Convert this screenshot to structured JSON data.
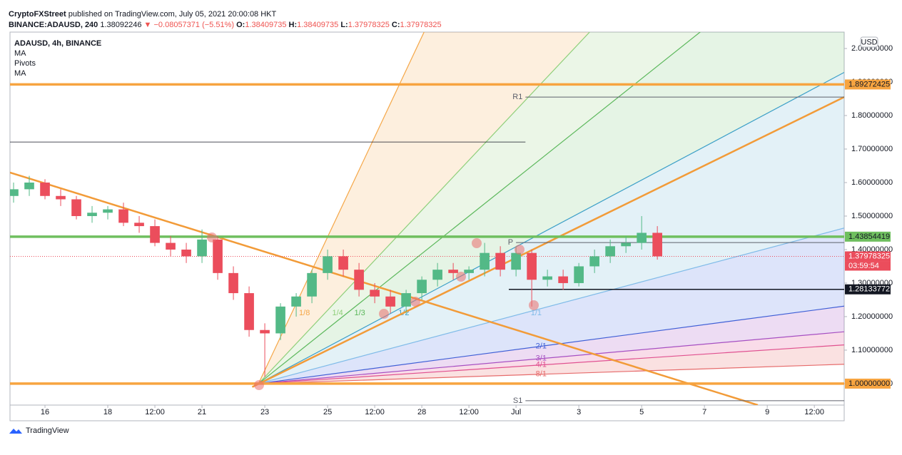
{
  "header": {
    "author": "CryptoFXStreet",
    "published": "published on TradingView.com, July 05, 2021 20:00:08 HKT",
    "symbol": "BINANCE:ADAUSD, 240",
    "price": "1.38092246",
    "change": "▼ −0.08057371 (−5.51%)",
    "ohlc": [
      {
        "k": "O:",
        "v": "1.38409735"
      },
      {
        "k": "H:",
        "v": "1.38409735"
      },
      {
        "k": "L:",
        "v": "1.37978325"
      },
      {
        "k": "C:",
        "v": "1.37978325"
      }
    ]
  },
  "footer": {
    "brand": "TradingView"
  },
  "chart_data": {
    "type": "candlestick",
    "legend_lines": [
      "ADAUSD, 4h, BINANCE",
      "MA",
      "Pivots",
      "MA"
    ],
    "currency": "USD",
    "x": [
      15,
      15.5,
      16,
      16.5,
      17,
      17.5,
      18,
      18.5,
      19,
      19.5,
      20,
      20.5,
      21,
      21.5,
      22,
      22.5,
      23,
      23.5,
      24,
      24.5,
      25,
      25.5,
      26,
      26.5,
      27,
      27.5,
      28,
      28.5,
      29,
      29.5,
      30,
      30.5,
      31,
      31.5,
      32,
      32.5,
      33,
      33.5,
      34,
      34.5,
      35,
      35.5
    ],
    "open": [
      1.56,
      1.58,
      1.6,
      1.56,
      1.55,
      1.5,
      1.51,
      1.52,
      1.48,
      1.47,
      1.42,
      1.4,
      1.38,
      1.43,
      1.33,
      1.27,
      1.16,
      1.15,
      1.23,
      1.26,
      1.33,
      1.38,
      1.34,
      1.28,
      1.26,
      1.23,
      1.27,
      1.31,
      1.34,
      1.33,
      1.34,
      1.39,
      1.34,
      1.39,
      1.31,
      1.32,
      1.3,
      1.35,
      1.38,
      1.41,
      1.42,
      1.45
    ],
    "high": [
      1.6,
      1.62,
      1.61,
      1.58,
      1.56,
      1.53,
      1.53,
      1.54,
      1.5,
      1.49,
      1.44,
      1.42,
      1.46,
      1.44,
      1.35,
      1.29,
      1.18,
      1.24,
      1.27,
      1.34,
      1.4,
      1.4,
      1.36,
      1.3,
      1.28,
      1.28,
      1.32,
      1.36,
      1.36,
      1.35,
      1.42,
      1.41,
      1.41,
      1.4,
      1.34,
      1.34,
      1.36,
      1.4,
      1.43,
      1.44,
      1.5,
      1.47
    ],
    "low": [
      1.54,
      1.56,
      1.55,
      1.53,
      1.49,
      1.48,
      1.49,
      1.47,
      1.45,
      1.41,
      1.38,
      1.36,
      1.36,
      1.31,
      1.25,
      1.14,
      1.02,
      1.13,
      1.2,
      1.24,
      1.31,
      1.32,
      1.26,
      1.24,
      1.21,
      1.21,
      1.25,
      1.29,
      1.31,
      1.31,
      1.32,
      1.32,
      1.32,
      1.23,
      1.29,
      1.28,
      1.29,
      1.33,
      1.36,
      1.39,
      1.4,
      1.37
    ],
    "close": [
      1.58,
      1.6,
      1.56,
      1.55,
      1.5,
      1.51,
      1.52,
      1.48,
      1.47,
      1.42,
      1.4,
      1.38,
      1.43,
      1.33,
      1.27,
      1.16,
      1.15,
      1.23,
      1.26,
      1.33,
      1.38,
      1.34,
      1.28,
      1.26,
      1.23,
      1.27,
      1.31,
      1.34,
      1.33,
      1.34,
      1.39,
      1.34,
      1.39,
      1.31,
      1.32,
      1.3,
      1.35,
      1.38,
      1.41,
      1.42,
      1.45,
      1.38
    ],
    "up_color": "#53b987",
    "down_color": "#eb4d5c",
    "xlim": [
      14.886,
      41.45
    ],
    "xticks": [
      16,
      18,
      {
        "value": 19.5,
        "label": "12:00"
      },
      21,
      23,
      25,
      {
        "value": 26.5,
        "label": "12:00"
      },
      28,
      {
        "value": 29.5,
        "label": "12:00"
      },
      {
        "value": 31,
        "label": "Jul"
      },
      {
        "value": 33,
        "label": "3"
      },
      {
        "value": 35,
        "label": "5"
      },
      {
        "value": 37,
        "label": "7"
      },
      {
        "value": 39,
        "label": "9"
      },
      {
        "value": 40.5,
        "label": "12:00"
      }
    ],
    "ylim": [
      0.936,
      2.049
    ],
    "yticks": [
      {
        "value": 1.0,
        "label": "1.00000000"
      },
      {
        "value": 1.1,
        "label": "1.10000000"
      },
      {
        "value": 1.2,
        "label": "1.20000000"
      },
      {
        "value": 1.3,
        "label": "1.30000000"
      },
      {
        "value": 1.4,
        "label": "1.40000000"
      },
      {
        "value": 1.5,
        "label": "1.50000000"
      },
      {
        "value": 1.6,
        "label": "1.60000000"
      },
      {
        "value": 1.7,
        "label": "1.70000000"
      },
      {
        "value": 1.8,
        "label": "1.80000000"
      },
      {
        "value": 1.9,
        "label": "1.90000000"
      },
      {
        "value": 2.0,
        "label": "2.00000000"
      }
    ],
    "levels": [
      {
        "value": 1.89272425,
        "color": "#f7a440",
        "text_color": "#131722"
      },
      {
        "value": 1.43854419,
        "color": "#6fbf5f",
        "text_color": "#131722"
      },
      {
        "value": 1,
        "label": "1.00000000",
        "color": "#f7a440",
        "text_color": "#131722"
      }
    ],
    "support": {
      "value": 1.28133772,
      "from": 30.77,
      "color": "#131722"
    },
    "last": {
      "value": 1.37978325,
      "countdown": "03:59:54",
      "color": "#eb4d5c"
    },
    "pivots": [
      {
        "label": "R1",
        "value": 1.855,
        "from": 31.3
      },
      {
        "label": "P",
        "value": 1.421,
        "from": 31.0
      },
      {
        "label": "S1",
        "value": 0.949,
        "from": 31.3
      }
    ],
    "hline": {
      "value": 1.721,
      "from": 14.886,
      "to": 31.3
    },
    "trendlines": [
      {
        "x": [
          14.886,
          38.7
        ],
        "y": [
          1.63,
          0.936
        ],
        "color": "#f29b38"
      },
      {
        "x": [
          22.6,
          41.45
        ],
        "y": [
          0.99,
          1.855
        ],
        "color": "#f29b38"
      }
    ],
    "gann": {
      "origin_x": 22.8,
      "origin_y": 1.0,
      "labels": [
        "1/8",
        "1/4",
        "1/3",
        "1/2",
        "1/1",
        "2/1",
        "3/1",
        "4/1",
        "8/1"
      ],
      "slopes": [
        0.199,
        0.0995,
        0.0746,
        0.0498,
        0.0249,
        0.0124,
        0.0083,
        0.0062,
        0.0031
      ],
      "colors": [
        "#f5a646",
        "#8fcf7a",
        "#5cb85c",
        "#3b9fc7",
        "#7fbbe8",
        "#3f5fd6",
        "#a64fc2",
        "#e0508f",
        "#e66b6b"
      ],
      "fills": [
        "rgba(245,166,70,0.18)",
        "rgba(143,207,122,0.18)",
        "rgba(92,184,92,0.16)",
        "rgba(59,159,199,0.14)",
        "rgba(100,130,230,0.22)",
        "rgba(166,79,194,0.2)",
        "rgba(224,80,143,0.2)",
        "rgba(230,107,107,0.2)"
      ]
    }
  }
}
